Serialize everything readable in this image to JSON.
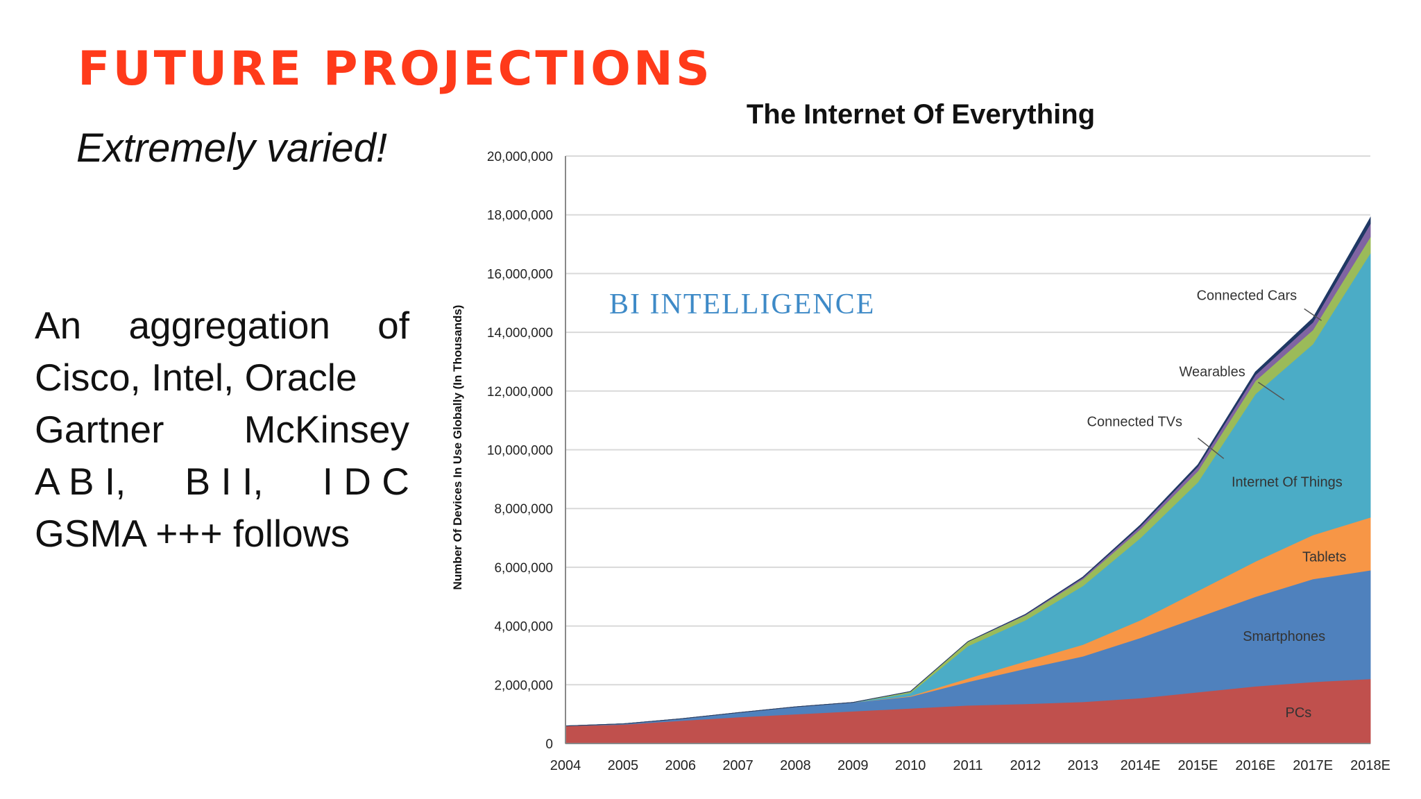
{
  "slide": {
    "title": "FUTURE PROJECTIONS",
    "subtitle": "Extremely varied!",
    "body_lines": [
      [
        "An",
        "aggregation",
        "of"
      ],
      [
        "Cisco, Intel, Oracle"
      ],
      [
        "Gartner",
        "McKinsey"
      ],
      [
        "A B I,",
        "B I I,",
        "I D C"
      ],
      [
        "GSMA +++ follows"
      ]
    ]
  },
  "colors": {
    "title": "#ff3a1a",
    "text": "#111111",
    "watermark": "#3e8ac7"
  },
  "chart_data": {
    "type": "area",
    "stacked": true,
    "title": "The Internet Of Everything",
    "ylabel": "Number Of Devices In Use Globally (In Thousands)",
    "xlabel": "",
    "watermark": "BI INTELLIGENCE",
    "categories": [
      "2004",
      "2005",
      "2006",
      "2007",
      "2008",
      "2009",
      "2010",
      "2011",
      "2012",
      "2013",
      "2014E",
      "2015E",
      "2016E",
      "2017E",
      "2018E"
    ],
    "ylim": [
      0,
      20000000
    ],
    "yticks": [
      0,
      2000000,
      4000000,
      6000000,
      8000000,
      10000000,
      12000000,
      14000000,
      16000000,
      18000000,
      20000000
    ],
    "ytick_labels": [
      "0",
      "2,000,000",
      "4,000,000",
      "6,000,000",
      "8,000,000",
      "10,000,000",
      "12,000,000",
      "14,000,000",
      "16,000,000",
      "18,000,000",
      "20,000,000"
    ],
    "grid": true,
    "legend": "inline labels",
    "series": [
      {
        "name": "PCs",
        "color": "#c0504d",
        "values": [
          600000,
          650000,
          780000,
          900000,
          1000000,
          1100000,
          1200000,
          1300000,
          1350000,
          1420000,
          1550000,
          1750000,
          1950000,
          2100000,
          2200000
        ]
      },
      {
        "name": "Smartphones",
        "color": "#4f81bd",
        "values": [
          0,
          20000,
          60000,
          150000,
          250000,
          300000,
          400000,
          800000,
          1200000,
          1550000,
          2050000,
          2550000,
          3050000,
          3500000,
          3700000
        ]
      },
      {
        "name": "Tablets",
        "color": "#f79646",
        "values": [
          0,
          0,
          0,
          0,
          0,
          0,
          20000,
          120000,
          250000,
          400000,
          600000,
          900000,
          1200000,
          1500000,
          1800000
        ]
      },
      {
        "name": "Internet Of Things",
        "color": "#4bacc6",
        "values": [
          0,
          0,
          0,
          0,
          0,
          0,
          100000,
          1100000,
          1400000,
          2000000,
          2800000,
          3700000,
          5700000,
          6500000,
          9000000
        ]
      },
      {
        "name": "Connected TVs",
        "color": "#9bbb59",
        "values": [
          0,
          0,
          0,
          0,
          0,
          0,
          50000,
          150000,
          170000,
          230000,
          300000,
          380000,
          450000,
          480000,
          550000
        ]
      },
      {
        "name": "Wearables",
        "color": "#8064a2",
        "values": [
          0,
          0,
          0,
          0,
          0,
          0,
          0,
          0,
          20000,
          50000,
          100000,
          150000,
          200000,
          260000,
          450000
        ]
      },
      {
        "name": "Connected Cars",
        "color": "#1f3864",
        "values": [
          0,
          0,
          0,
          0,
          0,
          0,
          0,
          0,
          10000,
          20000,
          40000,
          60000,
          100000,
          140000,
          200000
        ]
      }
    ]
  }
}
